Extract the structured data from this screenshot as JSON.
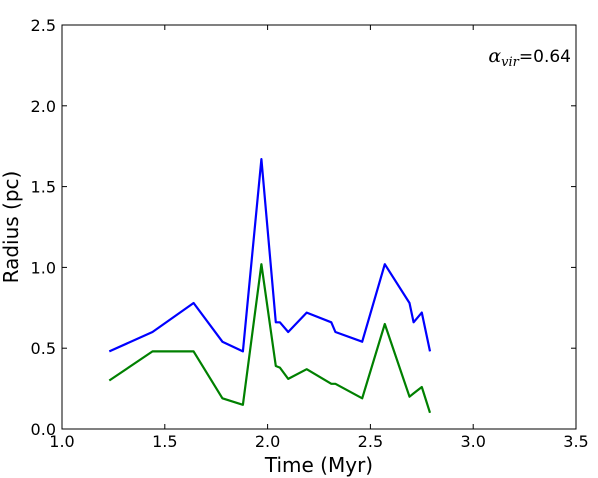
{
  "chart_data": {
    "type": "line",
    "xlabel": "Time (Myr)",
    "ylabel": "Radius (pc)",
    "xlim": [
      1.0,
      3.5
    ],
    "ylim": [
      0.0,
      2.5
    ],
    "xticks": [
      "1.0",
      "1.5",
      "2.0",
      "2.5",
      "3.0",
      "3.5"
    ],
    "yticks": [
      "0.0",
      "0.5",
      "1.0",
      "1.5",
      "2.0",
      "2.5"
    ],
    "grid": false,
    "annotation": {
      "symbol": "α",
      "subscript": "vir",
      "value": "=0.64"
    },
    "series": [
      {
        "color": "#0000ff",
        "x": [
          1.23,
          1.44,
          1.64,
          1.78,
          1.88,
          1.97,
          2.04,
          2.06,
          2.1,
          2.19,
          2.31,
          2.33,
          2.46,
          2.57,
          2.69,
          2.71,
          2.75,
          2.79
        ],
        "y": [
          0.48,
          0.6,
          0.78,
          0.54,
          0.48,
          1.67,
          0.66,
          0.66,
          0.6,
          0.72,
          0.66,
          0.6,
          0.54,
          1.02,
          0.78,
          0.66,
          0.72,
          0.48
        ]
      },
      {
        "color": "#008000",
        "x": [
          1.23,
          1.44,
          1.64,
          1.78,
          1.88,
          1.97,
          2.04,
          2.06,
          2.1,
          2.19,
          2.31,
          2.33,
          2.46,
          2.57,
          2.69,
          2.71,
          2.75,
          2.79
        ],
        "y": [
          0.3,
          0.48,
          0.48,
          0.19,
          0.15,
          1.02,
          0.39,
          0.38,
          0.31,
          0.37,
          0.28,
          0.28,
          0.19,
          0.65,
          0.2,
          0.22,
          0.26,
          0.1
        ]
      }
    ]
  }
}
